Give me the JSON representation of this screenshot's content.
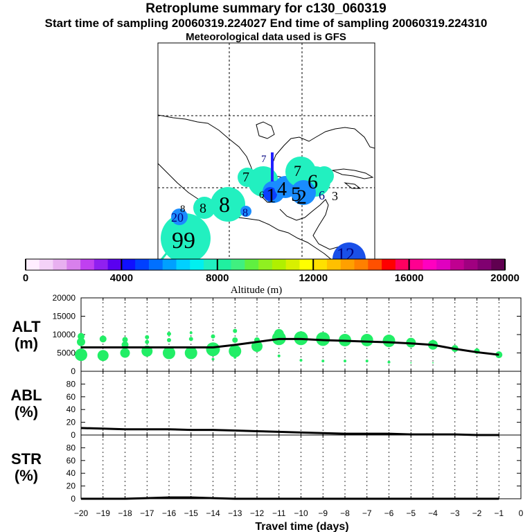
{
  "header": {
    "title": "Retroplume summary for c130_060319",
    "sampling": "Start time of sampling 20060319.224027      End time of sampling 20060319.224310",
    "met": "Meteorological data used is GFS"
  },
  "colors": {
    "bubble": "#22ee66",
    "line": "#000000",
    "colorbar": [
      "#ffeeff",
      "#f4d2f8",
      "#e8b0f0",
      "#d880ec",
      "#c040f0",
      "#9020f0",
      "#5a00f0",
      "#1010ff",
      "#0040ff",
      "#0070ff",
      "#00a0ff",
      "#00d0ff",
      "#00f0f0",
      "#20f0c0",
      "#20f0a0",
      "#40f080",
      "#60f040",
      "#90f020",
      "#b0f000",
      "#d8f000",
      "#ffff00",
      "#ffe000",
      "#ffc000",
      "#ffa000",
      "#ff8000",
      "#ff5000",
      "#ff0000",
      "#ff0060",
      "#ff0090",
      "#ff00c0",
      "#e000c0",
      "#c00090",
      "#a00080",
      "#800070",
      "#600050"
    ]
  },
  "map": {
    "labels": [
      {
        "text": "7",
        "size": "small",
        "color": "#000080"
      },
      {
        "text": "7",
        "size": "medium",
        "color": "#000000"
      },
      {
        "text": "7",
        "size": "medium",
        "color": "#000000"
      },
      {
        "text": "4",
        "size": "large",
        "color": "#000000"
      },
      {
        "text": "1",
        "size": "large",
        "color": "#000000"
      },
      {
        "text": "5",
        "size": "large",
        "color": "#000000"
      },
      {
        "text": "2",
        "size": "large",
        "color": "#000000"
      },
      {
        "text": "6",
        "size": "large",
        "color": "#000000"
      },
      {
        "text": "6",
        "size": "small",
        "color": "#000000"
      },
      {
        "text": "6",
        "size": "medium",
        "color": "#000080"
      },
      {
        "text": "3",
        "size": "medium",
        "color": "#000000"
      },
      {
        "text": "8",
        "size": "small",
        "color": "#000000"
      },
      {
        "text": "8",
        "size": "medium",
        "color": "#000000"
      },
      {
        "text": "8",
        "size": "large",
        "color": "#000000"
      },
      {
        "text": "8",
        "size": "small",
        "color": "#000080"
      },
      {
        "text": "20",
        "size": "medium",
        "color": "#000080"
      },
      {
        "text": "99",
        "size": "large",
        "color": "#000000"
      },
      {
        "text": "12",
        "size": "large",
        "color": "#000080"
      }
    ]
  },
  "colorbar": {
    "ticks": [
      "0",
      "4000",
      "8000",
      "12000",
      "16000",
      "20000"
    ],
    "label": "Altitude (m)"
  },
  "chart_data": [
    {
      "type": "line",
      "panel": "ALT",
      "ylabel": "ALT\n(m)",
      "ylabel_lines": [
        "ALT",
        "(m)"
      ],
      "ylim": [
        0,
        20000
      ],
      "yticks": [
        "20000",
        "15000",
        "10000",
        "5000",
        "0"
      ],
      "yticks_values": [
        20000,
        15000,
        10000,
        5000,
        0
      ],
      "x": [
        -20,
        -19,
        -18,
        -17,
        -16,
        -15,
        -14,
        -13,
        -12,
        -11,
        -10,
        -9,
        -8,
        -7,
        -6,
        -5,
        -4,
        -3,
        -2,
        -1
      ],
      "mean_altitude": [
        6500,
        6500,
        6500,
        6500,
        6500,
        6500,
        6500,
        7200,
        8000,
        8800,
        8800,
        8500,
        8300,
        8100,
        7900,
        7600,
        7200,
        6100,
        5200,
        4500
      ],
      "bubbles": [
        {
          "x": -20,
          "y": 4500,
          "r": 9
        },
        {
          "x": -20,
          "y": 8000,
          "r": 6
        },
        {
          "x": -20,
          "y": 9500,
          "r": 5
        },
        {
          "x": -19,
          "y": 4300,
          "r": 8
        },
        {
          "x": -19,
          "y": 8800,
          "r": 5
        },
        {
          "x": -18,
          "y": 5000,
          "r": 7
        },
        {
          "x": -18,
          "y": 7200,
          "r": 5
        },
        {
          "x": -18,
          "y": 8600,
          "r": 4
        },
        {
          "x": -17,
          "y": 5500,
          "r": 8
        },
        {
          "x": -17,
          "y": 8000,
          "r": 3
        },
        {
          "x": -17,
          "y": 9300,
          "r": 3
        },
        {
          "x": -16,
          "y": 5000,
          "r": 9
        },
        {
          "x": -16,
          "y": 8500,
          "r": 3
        },
        {
          "x": -16,
          "y": 10200,
          "r": 3
        },
        {
          "x": -15,
          "y": 5000,
          "r": 9
        },
        {
          "x": -15,
          "y": 8800,
          "r": 3
        },
        {
          "x": -15,
          "y": 10500,
          "r": 2
        },
        {
          "x": -14,
          "y": 6000,
          "r": 10
        },
        {
          "x": -14,
          "y": 9500,
          "r": 3
        },
        {
          "x": -14,
          "y": 3300,
          "r": 2
        },
        {
          "x": -13,
          "y": 5500,
          "r": 9
        },
        {
          "x": -13,
          "y": 8500,
          "r": 4
        },
        {
          "x": -13,
          "y": 11000,
          "r": 3
        },
        {
          "x": -13,
          "y": 3800,
          "r": 2
        },
        {
          "x": -12,
          "y": 6800,
          "r": 8
        },
        {
          "x": -12,
          "y": 8500,
          "r": 4
        },
        {
          "x": -11,
          "y": 9000,
          "r": 10
        },
        {
          "x": -11,
          "y": 10200,
          "r": 7
        },
        {
          "x": -11,
          "y": 4200,
          "r": 2
        },
        {
          "x": -10,
          "y": 9000,
          "r": 10
        },
        {
          "x": -10,
          "y": 3000,
          "r": 2
        },
        {
          "x": -9,
          "y": 8800,
          "r": 10
        },
        {
          "x": -9,
          "y": 2800,
          "r": 2
        },
        {
          "x": -8,
          "y": 8500,
          "r": 9
        },
        {
          "x": -8,
          "y": 2800,
          "r": 2
        },
        {
          "x": -7,
          "y": 8500,
          "r": 9
        },
        {
          "x": -7,
          "y": 2800,
          "r": 2
        },
        {
          "x": -6,
          "y": 8300,
          "r": 9
        },
        {
          "x": -6,
          "y": 2500,
          "r": 2
        },
        {
          "x": -5,
          "y": 7800,
          "r": 7
        },
        {
          "x": -5,
          "y": 2300,
          "r": 1
        },
        {
          "x": -4,
          "y": 7200,
          "r": 7
        },
        {
          "x": -4,
          "y": 2300,
          "r": 1
        },
        {
          "x": -3,
          "y": 6200,
          "r": 5
        },
        {
          "x": -2,
          "y": 5500,
          "r": 4
        },
        {
          "x": -1,
          "y": 4500,
          "r": 5
        }
      ]
    },
    {
      "type": "line",
      "panel": "ABL",
      "ylabel_lines": [
        "ABL",
        "(%)"
      ],
      "ylim": [
        0,
        100
      ],
      "yticks": [
        "80",
        "60",
        "40",
        "20",
        "0"
      ],
      "yticks_values": [
        80,
        60,
        40,
        20,
        0
      ],
      "x": [
        -20,
        -19,
        -18,
        -17,
        -16,
        -15,
        -14,
        -13,
        -12,
        -11,
        -10,
        -9,
        -8,
        -7,
        -6,
        -5,
        -4,
        -3,
        -2,
        -1
      ],
      "values": [
        11,
        10,
        9,
        9,
        9,
        8,
        8,
        7,
        6,
        5,
        4,
        3,
        2,
        2,
        2,
        1,
        1,
        1,
        0,
        0
      ]
    },
    {
      "type": "line",
      "panel": "STR",
      "ylabel_lines": [
        "STR",
        "(%)"
      ],
      "ylim": [
        0,
        100
      ],
      "yticks": [
        "80",
        "60",
        "40",
        "20",
        "0"
      ],
      "yticks_values": [
        80,
        60,
        40,
        20,
        0
      ],
      "x": [
        -20,
        -19,
        -18,
        -17,
        -16,
        -15,
        -14,
        -13,
        -12,
        -11,
        -10,
        -9,
        -8,
        -7,
        -6,
        -5,
        -4,
        -3,
        -2,
        -1
      ],
      "values": [
        0,
        0,
        0,
        1,
        2,
        2,
        1,
        0,
        0,
        0,
        0,
        0,
        0,
        0,
        0,
        0,
        0,
        0,
        0,
        0
      ]
    }
  ],
  "xaxis": {
    "ticks": [
      "−20",
      "−19",
      "−18",
      "−17",
      "−16",
      "−15",
      "−14",
      "−13",
      "−12",
      "−11",
      "−10",
      "−9",
      "−8",
      "−7",
      "−6",
      "−5",
      "−4",
      "−3",
      "−2",
      "−1",
      "0"
    ],
    "values": [
      -20,
      -19,
      -18,
      -17,
      -16,
      -15,
      -14,
      -13,
      -12,
      -11,
      -10,
      -9,
      -8,
      -7,
      -6,
      -5,
      -4,
      -3,
      -2,
      -1,
      0
    ],
    "label": "Travel time (days)"
  }
}
